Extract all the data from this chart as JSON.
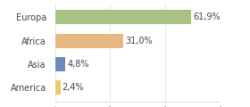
{
  "categories": [
    "Europa",
    "Africa",
    "Asia",
    "America"
  ],
  "values": [
    61.9,
    31.0,
    4.8,
    2.4
  ],
  "labels": [
    "61,9%",
    "31,0%",
    "4,8%",
    "2,4%"
  ],
  "bar_colors": [
    "#a8c285",
    "#e8b882",
    "#6b8cba",
    "#e8c96b"
  ],
  "xlim": [
    0,
    75
  ],
  "background_color": "#ffffff",
  "bar_height": 0.6,
  "fontsize_labels": 7,
  "fontsize_ticks": 7,
  "grid_color": "#dddddd",
  "grid_ticks": [
    0,
    25,
    50,
    75
  ]
}
